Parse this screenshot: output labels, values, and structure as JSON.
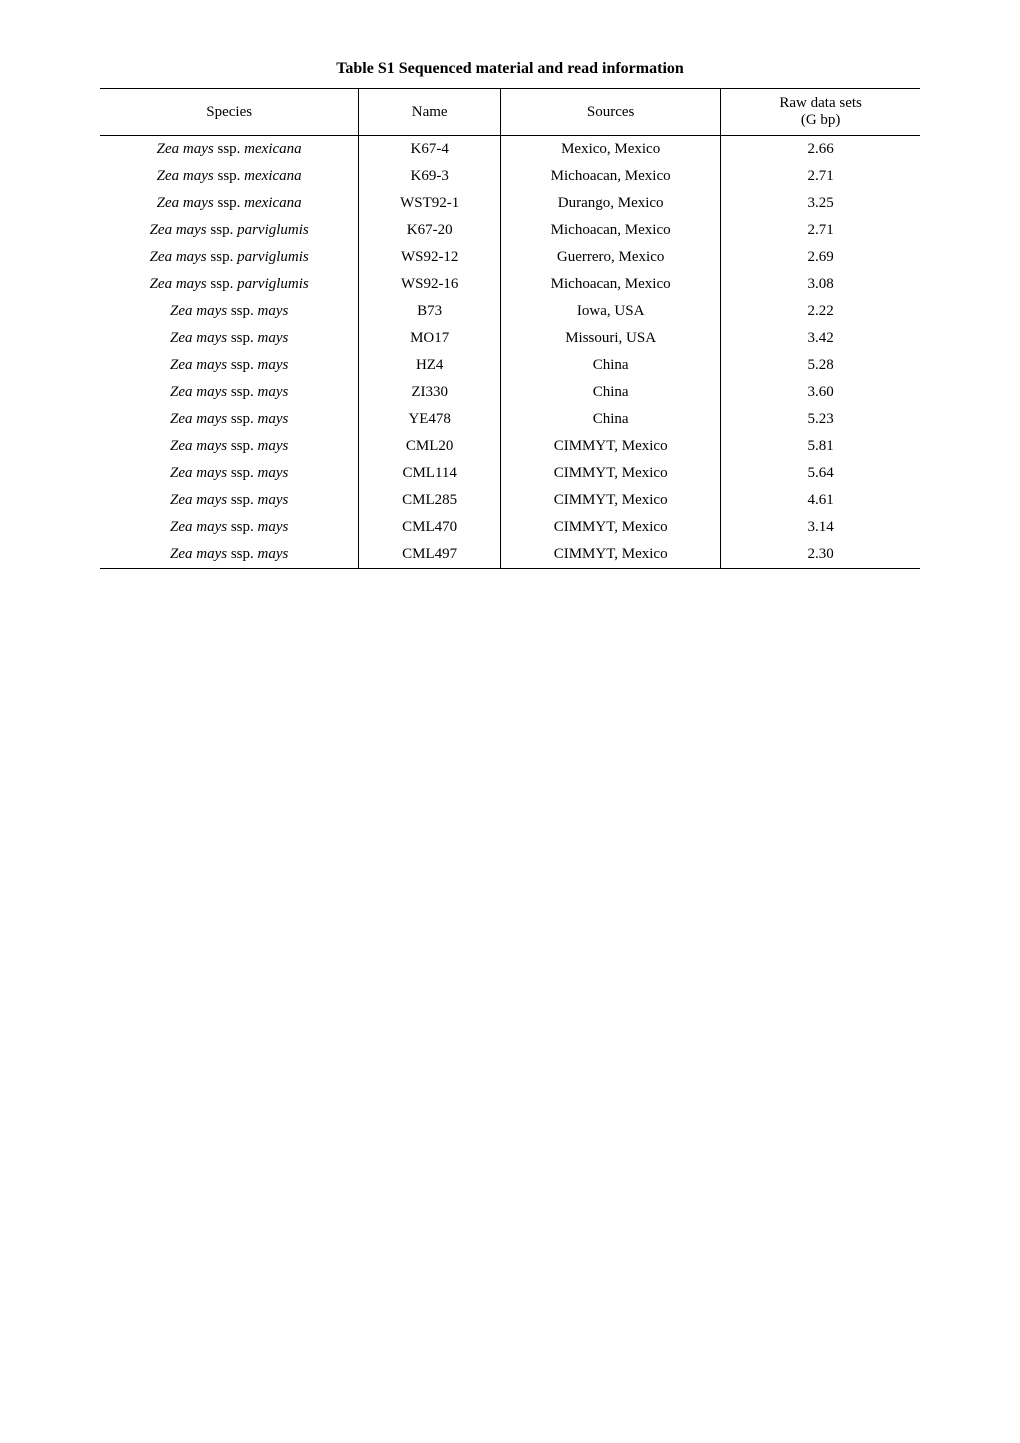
{
  "table": {
    "title": "Table S1 Sequenced material and read information",
    "headers": {
      "species": "Species",
      "name": "Name",
      "sources": "Sources",
      "raw_main": "Raw data sets",
      "raw_sub": "(G bp)"
    },
    "rows": [
      {
        "species_genus": "Zea mays",
        "species_ssp": "mexicana",
        "name": "K67-4",
        "sources": "Mexico, Mexico",
        "raw": "2.66"
      },
      {
        "species_genus": "Zea mays",
        "species_ssp": "mexicana",
        "name": "K69-3",
        "sources": "Michoacan, Mexico",
        "raw": "2.71"
      },
      {
        "species_genus": "Zea mays",
        "species_ssp": "mexicana",
        "name": "WST92-1",
        "sources": "Durango, Mexico",
        "raw": "3.25"
      },
      {
        "species_genus": "Zea mays",
        "species_ssp": "parviglumis",
        "name": "K67-20",
        "sources": "Michoacan, Mexico",
        "raw": "2.71"
      },
      {
        "species_genus": "Zea mays",
        "species_ssp": "parviglumis",
        "name": "WS92-12",
        "sources": "Guerrero, Mexico",
        "raw": "2.69"
      },
      {
        "species_genus": "Zea mays",
        "species_ssp": "parviglumis",
        "name": "WS92-16",
        "sources": "Michoacan, Mexico",
        "raw": "3.08"
      },
      {
        "species_genus": "Zea mays",
        "species_ssp": "mays",
        "name": "B73",
        "sources": "Iowa, USA",
        "raw": "2.22"
      },
      {
        "species_genus": "Zea mays",
        "species_ssp": "mays",
        "name": "MO17",
        "sources": "Missouri, USA",
        "raw": "3.42"
      },
      {
        "species_genus": "Zea mays",
        "species_ssp": "mays",
        "name": "HZ4",
        "sources": "China",
        "raw": "5.28"
      },
      {
        "species_genus": "Zea mays",
        "species_ssp": "mays",
        "name": "ZI330",
        "sources": "China",
        "raw": "3.60"
      },
      {
        "species_genus": "Zea mays",
        "species_ssp": "mays",
        "name": "YE478",
        "sources": "China",
        "raw": "5.23"
      },
      {
        "species_genus": "Zea mays",
        "species_ssp": "mays",
        "name": "CML20",
        "sources": "CIMMYT, Mexico",
        "raw": "5.81"
      },
      {
        "species_genus": "Zea mays",
        "species_ssp": "mays",
        "name": "CML114",
        "sources": "CIMMYT, Mexico",
        "raw": "5.64"
      },
      {
        "species_genus": "Zea mays",
        "species_ssp": "mays",
        "name": "CML285",
        "sources": "CIMMYT, Mexico",
        "raw": "4.61"
      },
      {
        "species_genus": "Zea mays",
        "species_ssp": "mays",
        "name": "CML470",
        "sources": "CIMMYT, Mexico",
        "raw": "3.14"
      },
      {
        "species_genus": "Zea mays",
        "species_ssp": "mays",
        "name": "CML497",
        "sources": "CIMMYT, Mexico",
        "raw": "2.30"
      }
    ]
  }
}
